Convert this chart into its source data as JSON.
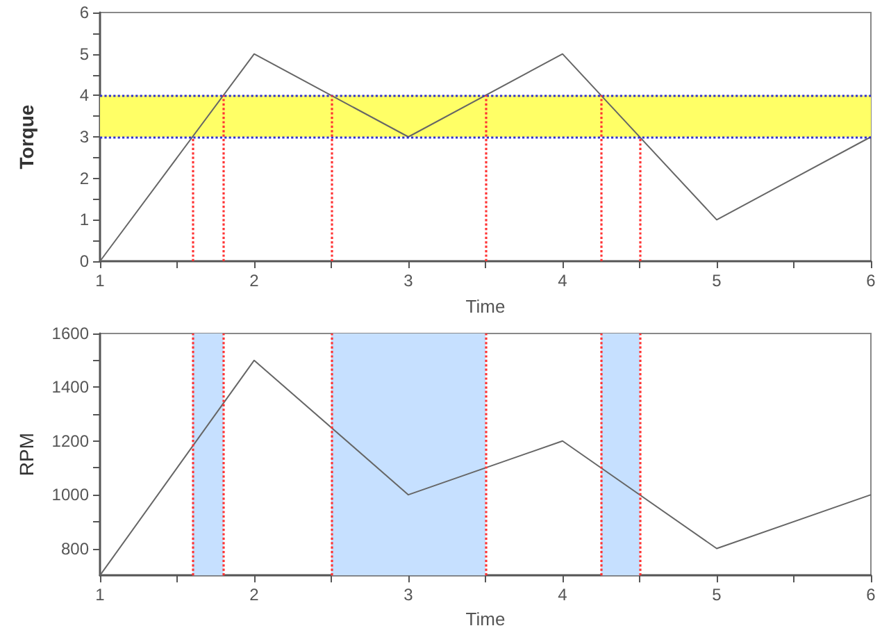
{
  "chart_data": [
    {
      "type": "line",
      "x": [
        1,
        2,
        3,
        4,
        5,
        6
      ],
      "values": [
        0,
        5,
        3,
        5,
        1,
        3
      ],
      "color": "#666666",
      "xlabel": "Time",
      "ylabel": "Torque",
      "xlim": [
        1,
        6
      ],
      "ylim": [
        0,
        6
      ],
      "xticks": [
        1,
        {
          "value": 1.5,
          "label": null
        },
        2,
        {
          "value": 2.5,
          "label": null
        },
        3,
        {
          "value": 3.5,
          "label": null
        },
        4,
        {
          "value": 4.5,
          "label": null
        },
        5,
        {
          "value": 5.5,
          "label": null
        },
        6
      ],
      "yticks": [
        0,
        {
          "value": 0.5,
          "label": null
        },
        1,
        {
          "value": 1.5,
          "label": null
        },
        2,
        {
          "value": 2.5,
          "label": null
        },
        3,
        {
          "value": 3.5,
          "label": null
        },
        4,
        {
          "value": 4.5,
          "label": null
        },
        5,
        {
          "value": 5.5,
          "label": null
        },
        6
      ],
      "marker": "none",
      "bands": [
        {
          "axis": "y",
          "from": 3,
          "to": 4,
          "color": "#ffff66"
        }
      ],
      "ref_lines": [
        {
          "axis": "y",
          "value": 3,
          "color": "#3333cc",
          "line_style": "dotted"
        },
        {
          "axis": "y",
          "value": 4,
          "color": "#3333cc",
          "line_style": "dotted"
        },
        {
          "axis": "x",
          "value": 1.6,
          "color": "#ff3333",
          "line_style": "dotted"
        },
        {
          "axis": "x",
          "value": 1.8,
          "color": "#ff3333",
          "line_style": "dotted"
        },
        {
          "axis": "x",
          "value": 2.5,
          "color": "#ff3333",
          "line_style": "dotted"
        },
        {
          "axis": "x",
          "value": 3.5,
          "color": "#ff3333",
          "line_style": "dotted"
        },
        {
          "axis": "x",
          "value": 4.25,
          "color": "#ff3333",
          "line_style": "dotted"
        },
        {
          "axis": "x",
          "value": 4.5,
          "color": "#ff3333",
          "line_style": "dotted"
        }
      ]
    },
    {
      "type": "line",
      "x": [
        1,
        2,
        3,
        4,
        5,
        6
      ],
      "values": [
        700,
        1500,
        1000,
        1200,
        800,
        1000
      ],
      "color": "#666666",
      "xlabel": "Time",
      "ylabel": "RPM",
      "xlim": [
        1,
        6
      ],
      "ylim": [
        700,
        1600
      ],
      "xticks": [
        1,
        {
          "value": 1.5,
          "label": null
        },
        2,
        {
          "value": 2.5,
          "label": null
        },
        3,
        {
          "value": 3.5,
          "label": null
        },
        4,
        {
          "value": 4.5,
          "label": null
        },
        5,
        {
          "value": 5.5,
          "label": null
        },
        6
      ],
      "yticks": [
        800,
        {
          "value": 900,
          "label": null
        },
        1000,
        {
          "value": 1100,
          "label": null
        },
        1200,
        {
          "value": 1300,
          "label": null
        },
        1400,
        {
          "value": 1500,
          "label": null
        },
        1600
      ],
      "marker": "none",
      "bands": [
        {
          "axis": "x",
          "from": 1.6,
          "to": 1.8,
          "color": "#c6e0ff"
        },
        {
          "axis": "x",
          "from": 2.5,
          "to": 3.5,
          "color": "#c6e0ff"
        },
        {
          "axis": "x",
          "from": 4.25,
          "to": 4.5,
          "color": "#c6e0ff"
        }
      ],
      "ref_lines": [
        {
          "axis": "x",
          "value": 1.6,
          "color": "#ff3333",
          "line_style": "dotted"
        },
        {
          "axis": "x",
          "value": 1.8,
          "color": "#ff3333",
          "line_style": "dotted"
        },
        {
          "axis": "x",
          "value": 2.5,
          "color": "#ff3333",
          "line_style": "dotted"
        },
        {
          "axis": "x",
          "value": 3.5,
          "color": "#ff3333",
          "line_style": "dotted"
        },
        {
          "axis": "x",
          "value": 4.25,
          "color": "#ff3333",
          "line_style": "dotted"
        },
        {
          "axis": "x",
          "value": 4.5,
          "color": "#ff3333",
          "line_style": "dotted"
        }
      ]
    }
  ]
}
